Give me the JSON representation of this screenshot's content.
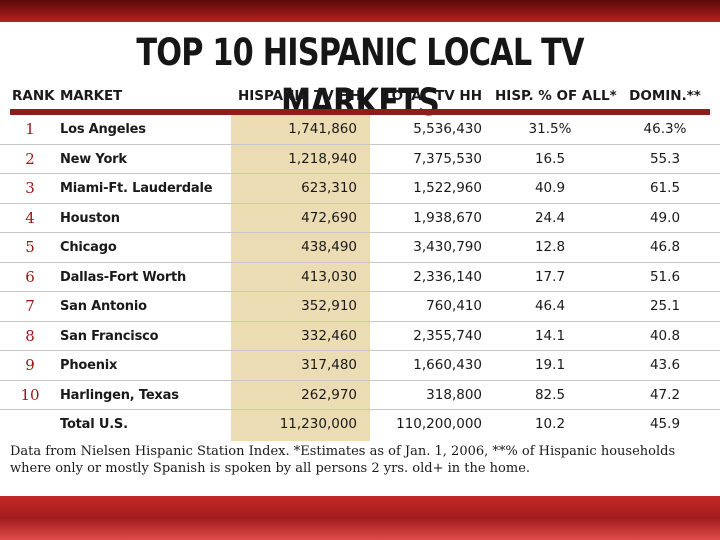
{
  "title": "TOP 10 HISPANIC LOCAL TV MARKETS",
  "headers": {
    "rank": "RANK",
    "market": "MARKET",
    "hispanic_tv_hh": "HISPANIC TV HH",
    "total_tv_hh": "TOTAL TV HH",
    "hisp_pct": "HISP. % OF ALL*",
    "domin": "DOMIN.**"
  },
  "rows": [
    {
      "rank": "1",
      "market": "Los Angeles",
      "hispanic_tv_hh": "1,741,860",
      "total_tv_hh": "5,536,430",
      "hisp_pct": "31.5%",
      "domin": "46.3%"
    },
    {
      "rank": "2",
      "market": "New York",
      "hispanic_tv_hh": "1,218,940",
      "total_tv_hh": "7,375,530",
      "hisp_pct": "16.5",
      "domin": "55.3"
    },
    {
      "rank": "3",
      "market": "Miami-Ft. Lauderdale",
      "hispanic_tv_hh": "623,310",
      "total_tv_hh": "1,522,960",
      "hisp_pct": "40.9",
      "domin": "61.5"
    },
    {
      "rank": "4",
      "market": "Houston",
      "hispanic_tv_hh": "472,690",
      "total_tv_hh": "1,938,670",
      "hisp_pct": "24.4",
      "domin": "49.0"
    },
    {
      "rank": "5",
      "market": "Chicago",
      "hispanic_tv_hh": "438,490",
      "total_tv_hh": "3,430,790",
      "hisp_pct": "12.8",
      "domin": "46.8"
    },
    {
      "rank": "6",
      "market": "Dallas-Fort Worth",
      "hispanic_tv_hh": "413,030",
      "total_tv_hh": "2,336,140",
      "hisp_pct": "17.7",
      "domin": "51.6"
    },
    {
      "rank": "7",
      "market": "San Antonio",
      "hispanic_tv_hh": "352,910",
      "total_tv_hh": "760,410",
      "hisp_pct": "46.4",
      "domin": "25.1"
    },
    {
      "rank": "8",
      "market": "San Francisco",
      "hispanic_tv_hh": "332,460",
      "total_tv_hh": "2,355,740",
      "hisp_pct": "14.1",
      "domin": "40.8"
    },
    {
      "rank": "9",
      "market": "Phoenix",
      "hispanic_tv_hh": "317,480",
      "total_tv_hh": "1,660,430",
      "hisp_pct": "19.1",
      "domin": "43.6"
    },
    {
      "rank": "10",
      "market": "Harlingen, Texas",
      "hispanic_tv_hh": "262,970",
      "total_tv_hh": "318,800",
      "hisp_pct": "82.5",
      "domin": "47.2"
    },
    {
      "rank": "",
      "market": "Total U.S.",
      "hispanic_tv_hh": "11,230,000",
      "total_tv_hh": "110,200,000",
      "hisp_pct": "10.2",
      "domin": "45.9"
    }
  ],
  "footnote": "Data from Nielsen Hispanic Station Index. *Estimates as of Jan. 1, 2006, **% of Hispanic households where only or mostly Spanish is spoken by all persons 2 yrs. old+ in the home.",
  "colors": {
    "top_bar": "#8d1616",
    "bottom_bar": "#c42828",
    "header_rule": "#8d1c1c",
    "hh_column_band": "#ecdcb3",
    "rank_text": "#9a1414"
  }
}
